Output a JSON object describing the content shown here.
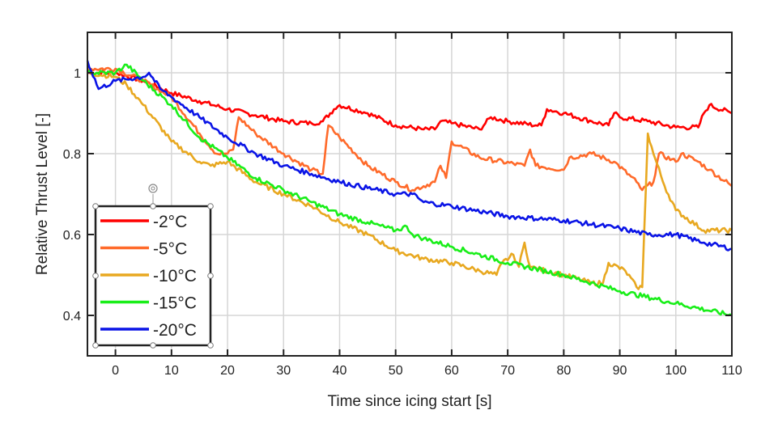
{
  "chart_data": {
    "type": "line",
    "title": "",
    "xlabel": "Time since icing start [s]",
    "ylabel": "Relative Thrust Level [-]",
    "xlim": [
      -5,
      110
    ],
    "ylim": [
      0.3,
      1.1
    ],
    "xticks": [
      0,
      10,
      20,
      30,
      40,
      50,
      60,
      70,
      80,
      90,
      100,
      110
    ],
    "yticks": [
      0.4,
      0.6,
      0.8,
      1
    ],
    "grid": true,
    "legend_position": "bottom-left",
    "series": [
      {
        "name": "-2°C",
        "color": "#ff0000",
        "x": [
          -5,
          0,
          5,
          10,
          15,
          20,
          25,
          30,
          35,
          37,
          39,
          40,
          45,
          50,
          55,
          57,
          58,
          60,
          65,
          67,
          70,
          75,
          76,
          77,
          80,
          85,
          88,
          89,
          90,
          95,
          100,
          104,
          105,
          106,
          110
        ],
        "y": [
          1.0,
          1.0,
          0.98,
          0.95,
          0.93,
          0.91,
          0.895,
          0.88,
          0.875,
          0.88,
          0.91,
          0.92,
          0.9,
          0.87,
          0.86,
          0.86,
          0.88,
          0.875,
          0.86,
          0.89,
          0.88,
          0.87,
          0.87,
          0.91,
          0.9,
          0.88,
          0.87,
          0.9,
          0.89,
          0.88,
          0.865,
          0.865,
          0.9,
          0.92,
          0.9
        ]
      },
      {
        "name": "-5°C",
        "color": "#ff6a2a",
        "x": [
          -5,
          0,
          5,
          10,
          15,
          18,
          20,
          21,
          22,
          25,
          30,
          35,
          37,
          38,
          40,
          45,
          50,
          53,
          57,
          58,
          59,
          60,
          65,
          73,
          74,
          75,
          80,
          81,
          85,
          89,
          93,
          94,
          96,
          97,
          100,
          101,
          104,
          106,
          110
        ],
        "y": [
          1.01,
          1.01,
          0.98,
          0.94,
          0.85,
          0.8,
          0.8,
          0.81,
          0.89,
          0.85,
          0.8,
          0.76,
          0.75,
          0.87,
          0.84,
          0.77,
          0.73,
          0.71,
          0.73,
          0.77,
          0.74,
          0.83,
          0.79,
          0.77,
          0.81,
          0.77,
          0.76,
          0.79,
          0.8,
          0.78,
          0.73,
          0.71,
          0.73,
          0.8,
          0.78,
          0.8,
          0.78,
          0.76,
          0.72
        ]
      },
      {
        "name": "-10°C",
        "color": "#e8a820",
        "x": [
          -5,
          0,
          2,
          5,
          10,
          15,
          17,
          20,
          25,
          30,
          35,
          40,
          45,
          50,
          55,
          60,
          65,
          68,
          69,
          71,
          72,
          73,
          74,
          80,
          85,
          87,
          88,
          91,
          93,
          94,
          95,
          96,
          98,
          100,
          105,
          110
        ],
        "y": [
          1.0,
          0.99,
          0.97,
          0.92,
          0.83,
          0.78,
          0.77,
          0.78,
          0.73,
          0.7,
          0.67,
          0.63,
          0.6,
          0.56,
          0.54,
          0.53,
          0.51,
          0.5,
          0.53,
          0.55,
          0.52,
          0.58,
          0.52,
          0.5,
          0.48,
          0.48,
          0.53,
          0.51,
          0.47,
          0.47,
          0.85,
          0.8,
          0.72,
          0.66,
          0.61,
          0.61
        ]
      },
      {
        "name": "-15°C",
        "color": "#19ee19",
        "x": [
          -5,
          0,
          2,
          5,
          10,
          15,
          20,
          25,
          30,
          35,
          40,
          45,
          50,
          52,
          53,
          55,
          60,
          70,
          80,
          90,
          100,
          110
        ],
        "y": [
          1.0,
          1.0,
          1.02,
          0.98,
          0.92,
          0.84,
          0.79,
          0.74,
          0.71,
          0.68,
          0.65,
          0.63,
          0.61,
          0.62,
          0.6,
          0.59,
          0.57,
          0.53,
          0.5,
          0.46,
          0.43,
          0.4
        ]
      },
      {
        "name": "-20°C",
        "color": "#0a14e6",
        "x": [
          -5,
          -3,
          0,
          5,
          6,
          8,
          10,
          15,
          20,
          25,
          30,
          35,
          40,
          50,
          53,
          55,
          60,
          70,
          80,
          90,
          95,
          100,
          105,
          110
        ],
        "y": [
          1.03,
          0.96,
          0.98,
          0.99,
          1.0,
          0.96,
          0.94,
          0.89,
          0.84,
          0.8,
          0.77,
          0.75,
          0.73,
          0.7,
          0.7,
          0.68,
          0.67,
          0.645,
          0.635,
          0.615,
          0.6,
          0.6,
          0.58,
          0.565
        ]
      }
    ]
  }
}
